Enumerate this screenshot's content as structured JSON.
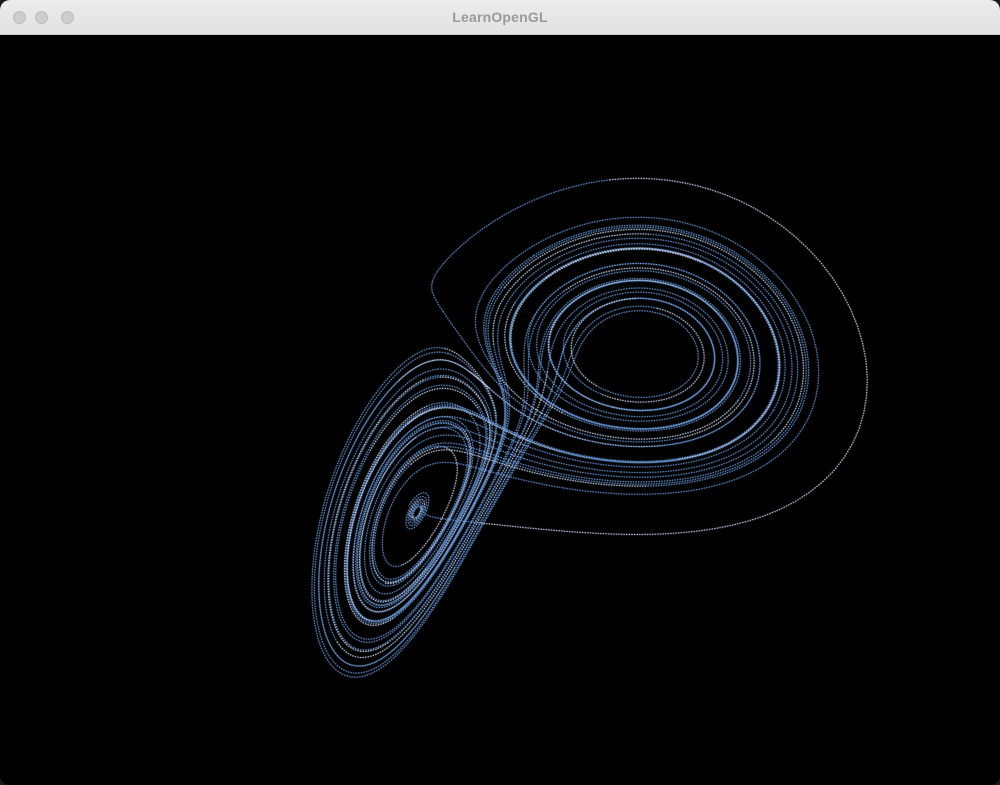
{
  "window": {
    "title": "LearnOpenGL"
  },
  "render": {
    "subject": "lorenz-attractor",
    "point_color": "#6f9fe0",
    "highlight_color": "#d6e4ff",
    "background": "#000000"
  }
}
